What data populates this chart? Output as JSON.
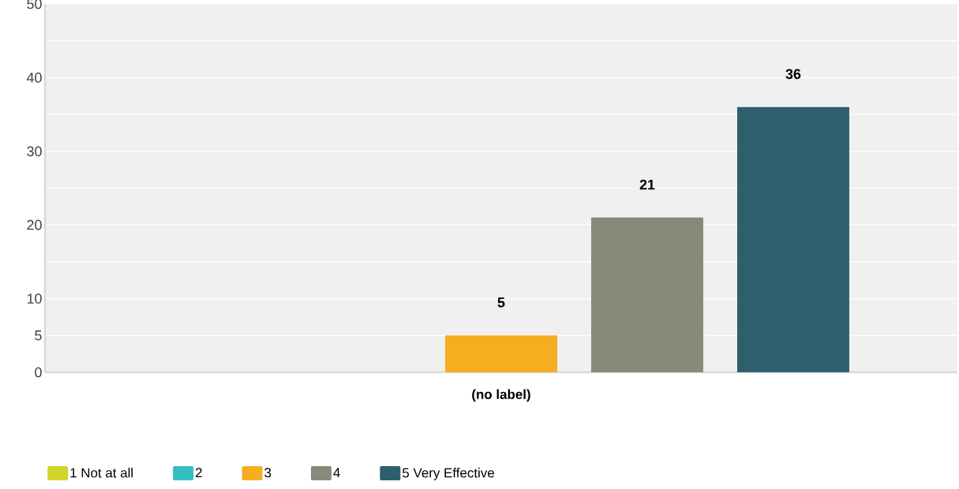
{
  "chart_data": {
    "type": "bar",
    "categories": [
      "(no label)"
    ],
    "series": [
      {
        "name": "1 Not at all",
        "color": "#d0d52b",
        "values": [
          0
        ],
        "value_labels": [
          null
        ]
      },
      {
        "name": "2",
        "color": "#33bfc1",
        "values": [
          0
        ],
        "value_labels": [
          null
        ]
      },
      {
        "name": "3",
        "color": "#f6ae1f",
        "values": [
          5
        ],
        "value_labels": [
          "5"
        ]
      },
      {
        "name": "4",
        "color": "#878a7a",
        "values": [
          21
        ],
        "value_labels": [
          "21"
        ]
      },
      {
        "name": "5 Very Effective",
        "color": "#2e5f6d",
        "values": [
          36
        ],
        "value_labels": [
          "36"
        ]
      }
    ],
    "ylim": [
      0,
      50
    ],
    "yticks": [
      0,
      5,
      10,
      {
        "value": 15,
        "label": null
      },
      20,
      {
        "value": 25,
        "label": null
      },
      30,
      {
        "value": 35,
        "label": null
      },
      40,
      {
        "value": 45,
        "label": null
      },
      50
    ],
    "grid": "y",
    "legend": "bottom"
  }
}
